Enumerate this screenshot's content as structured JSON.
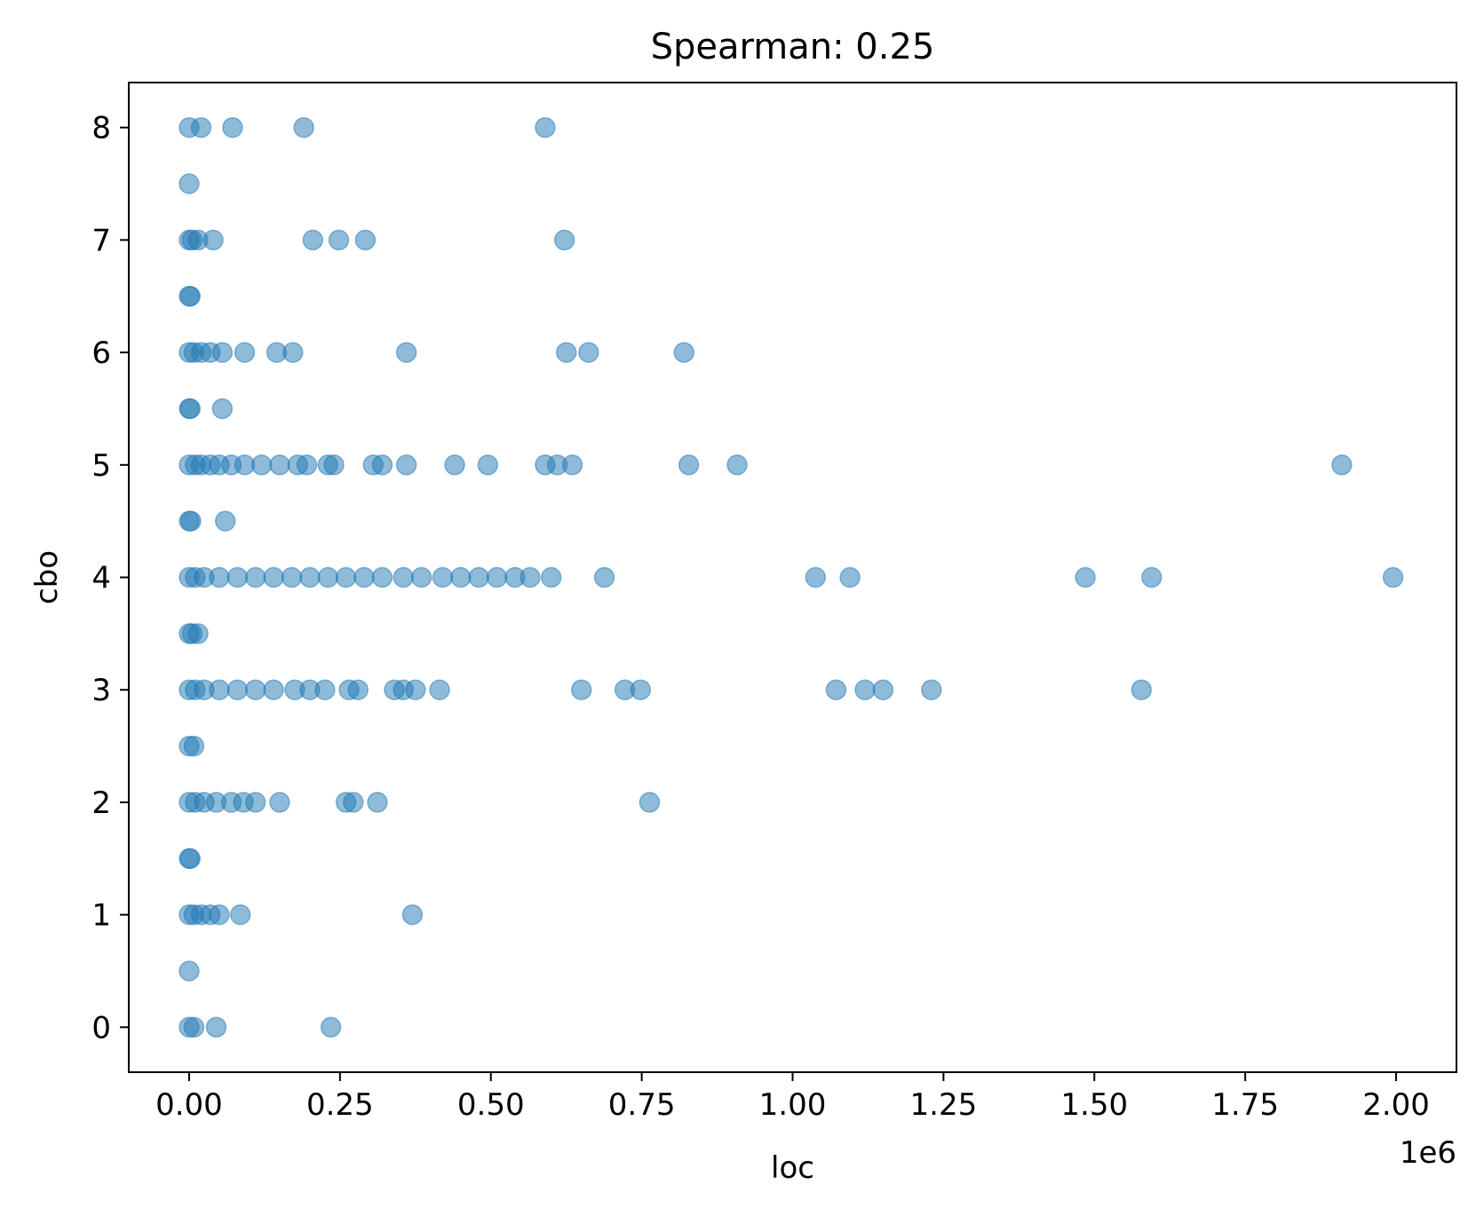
{
  "chart_data": {
    "type": "scatter",
    "title": "Spearman: 0.25",
    "xlabel": "loc",
    "ylabel": "cbo",
    "x_offset_label": "1e6",
    "xlim": [
      -100000,
      2100000
    ],
    "ylim": [
      -0.4,
      8.4
    ],
    "x_ticks": [
      0,
      250000,
      500000,
      750000,
      1000000,
      1250000,
      1500000,
      1750000,
      2000000
    ],
    "x_tick_labels": [
      "0.00",
      "0.25",
      "0.50",
      "0.75",
      "1.00",
      "1.25",
      "1.50",
      "1.75",
      "2.00"
    ],
    "y_ticks": [
      0,
      1,
      2,
      3,
      4,
      5,
      6,
      7,
      8
    ],
    "y_tick_labels": [
      "0",
      "1",
      "2",
      "3",
      "4",
      "5",
      "6",
      "7",
      "8"
    ],
    "grid": false,
    "marker_color": "#1f77b4",
    "marker_alpha": 0.5,
    "series": [
      {
        "points": [
          [
            0,
            8
          ],
          [
            20000,
            8
          ],
          [
            72000,
            8
          ],
          [
            190000,
            8
          ],
          [
            590000,
            8
          ],
          [
            0,
            7.5
          ],
          [
            0,
            7
          ],
          [
            5000,
            7
          ],
          [
            15000,
            7
          ],
          [
            40000,
            7
          ],
          [
            205000,
            7
          ],
          [
            248000,
            7
          ],
          [
            292000,
            7
          ],
          [
            622000,
            7
          ],
          [
            0,
            6.5
          ],
          [
            2000,
            6.5
          ],
          [
            0,
            6
          ],
          [
            8000,
            6
          ],
          [
            20000,
            6
          ],
          [
            35000,
            6
          ],
          [
            55000,
            6
          ],
          [
            92000,
            6
          ],
          [
            145000,
            6
          ],
          [
            172000,
            6
          ],
          [
            360000,
            6
          ],
          [
            625000,
            6
          ],
          [
            662000,
            6
          ],
          [
            820000,
            6
          ],
          [
            0,
            5.5
          ],
          [
            2000,
            5.5
          ],
          [
            55000,
            5.5
          ],
          [
            0,
            5
          ],
          [
            10000,
            5
          ],
          [
            20000,
            5
          ],
          [
            35000,
            5
          ],
          [
            50000,
            5
          ],
          [
            70000,
            5
          ],
          [
            92000,
            5
          ],
          [
            120000,
            5
          ],
          [
            150000,
            5
          ],
          [
            180000,
            5
          ],
          [
            195000,
            5
          ],
          [
            230000,
            5
          ],
          [
            240000,
            5
          ],
          [
            305000,
            5
          ],
          [
            320000,
            5
          ],
          [
            360000,
            5
          ],
          [
            440000,
            5
          ],
          [
            495000,
            5
          ],
          [
            590000,
            5
          ],
          [
            610000,
            5
          ],
          [
            635000,
            5
          ],
          [
            828000,
            5
          ],
          [
            908000,
            5
          ],
          [
            1910000,
            5
          ],
          [
            0,
            4.5
          ],
          [
            3000,
            4.5
          ],
          [
            60000,
            4.5
          ],
          [
            0,
            4
          ],
          [
            10000,
            4
          ],
          [
            25000,
            4
          ],
          [
            50000,
            4
          ],
          [
            80000,
            4
          ],
          [
            110000,
            4
          ],
          [
            140000,
            4
          ],
          [
            170000,
            4
          ],
          [
            200000,
            4
          ],
          [
            230000,
            4
          ],
          [
            260000,
            4
          ],
          [
            290000,
            4
          ],
          [
            320000,
            4
          ],
          [
            355000,
            4
          ],
          [
            385000,
            4
          ],
          [
            420000,
            4
          ],
          [
            450000,
            4
          ],
          [
            480000,
            4
          ],
          [
            510000,
            4
          ],
          [
            540000,
            4
          ],
          [
            565000,
            4
          ],
          [
            600000,
            4
          ],
          [
            688000,
            4
          ],
          [
            1038000,
            4
          ],
          [
            1095000,
            4
          ],
          [
            1485000,
            4
          ],
          [
            1595000,
            4
          ],
          [
            1995000,
            4
          ],
          [
            0,
            3.5
          ],
          [
            5000,
            3.5
          ],
          [
            15000,
            3.5
          ],
          [
            0,
            3
          ],
          [
            10000,
            3
          ],
          [
            25000,
            3
          ],
          [
            50000,
            3
          ],
          [
            80000,
            3
          ],
          [
            110000,
            3
          ],
          [
            140000,
            3
          ],
          [
            175000,
            3
          ],
          [
            200000,
            3
          ],
          [
            225000,
            3
          ],
          [
            265000,
            3
          ],
          [
            280000,
            3
          ],
          [
            340000,
            3
          ],
          [
            355000,
            3
          ],
          [
            375000,
            3
          ],
          [
            415000,
            3
          ],
          [
            650000,
            3
          ],
          [
            722000,
            3
          ],
          [
            748000,
            3
          ],
          [
            1072000,
            3
          ],
          [
            1120000,
            3
          ],
          [
            1150000,
            3
          ],
          [
            1230000,
            3
          ],
          [
            1578000,
            3
          ],
          [
            0,
            2.5
          ],
          [
            8000,
            2.5
          ],
          [
            0,
            2
          ],
          [
            10000,
            2
          ],
          [
            25000,
            2
          ],
          [
            45000,
            2
          ],
          [
            70000,
            2
          ],
          [
            90000,
            2
          ],
          [
            110000,
            2
          ],
          [
            150000,
            2
          ],
          [
            260000,
            2
          ],
          [
            272000,
            2
          ],
          [
            312000,
            2
          ],
          [
            763000,
            2
          ],
          [
            0,
            1.5
          ],
          [
            2000,
            1.5
          ],
          [
            0,
            1
          ],
          [
            8000,
            1
          ],
          [
            20000,
            1
          ],
          [
            35000,
            1
          ],
          [
            50000,
            1
          ],
          [
            85000,
            1
          ],
          [
            370000,
            1
          ],
          [
            0,
            0.5
          ],
          [
            0,
            0
          ],
          [
            8000,
            0
          ],
          [
            45000,
            0
          ],
          [
            235000,
            0
          ]
        ]
      }
    ]
  }
}
